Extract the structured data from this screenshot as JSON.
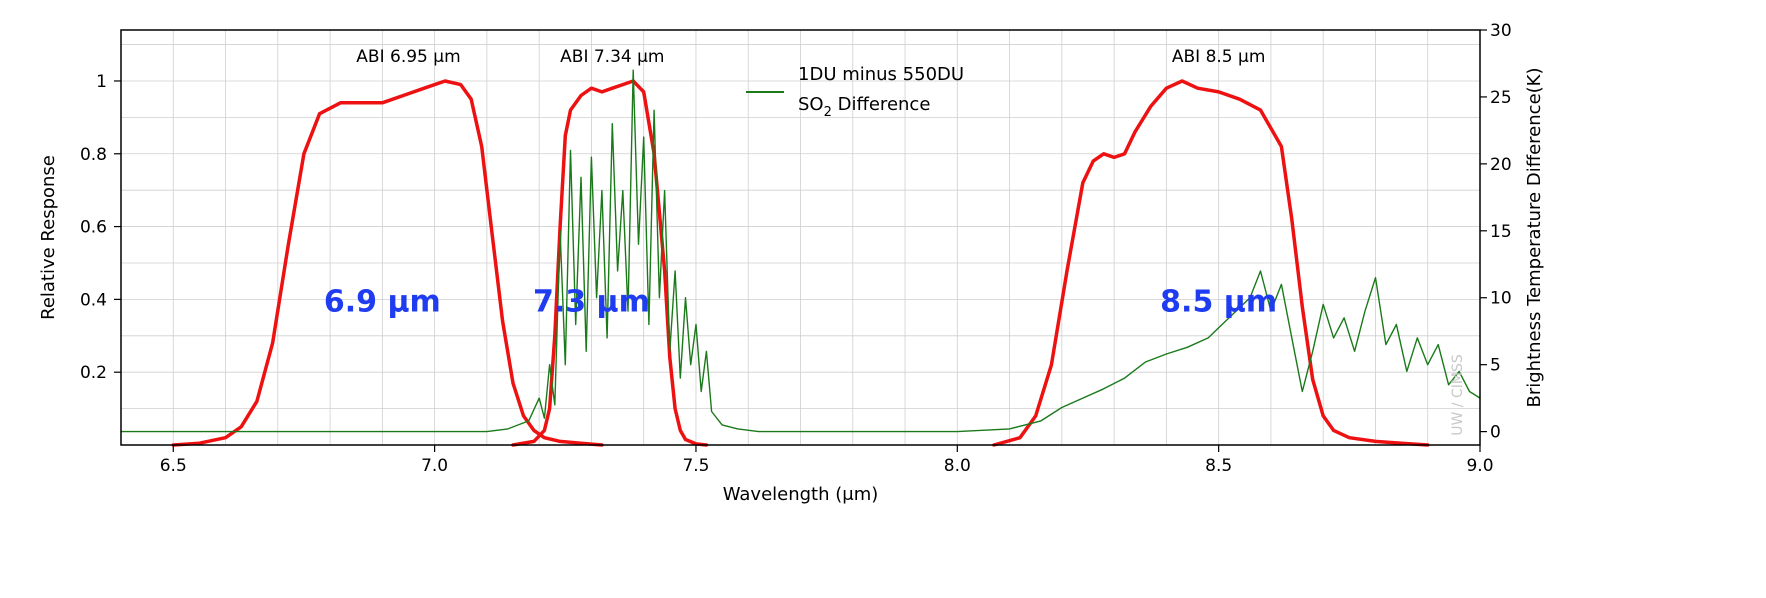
{
  "chart_data": {
    "type": "line",
    "xlabel": "Wavelength (μm)",
    "ylabel": "Relative Response",
    "y2label": "Brightness Temperature Difference(K)",
    "xlim": [
      6.4,
      9.0
    ],
    "ylim": [
      0,
      1.14
    ],
    "y2lim": [
      -1,
      30
    ],
    "grid": true,
    "x_ticks": [
      6.5,
      7.0,
      7.5,
      8.0,
      8.5,
      9.0
    ],
    "x_tick_labels": [
      "6.5",
      "7.0",
      "7.5",
      "8.0",
      "8.5",
      "9.0"
    ],
    "y_ticks": [
      0.2,
      0.4,
      0.6,
      0.8,
      1.0
    ],
    "y_tick_labels": [
      "0.2",
      "0.4",
      "0.6",
      "0.8",
      "1"
    ],
    "y2_ticks": [
      0,
      5,
      10,
      15,
      20,
      25,
      30
    ],
    "y2_tick_labels": [
      "0",
      "5",
      "10",
      "15",
      "20",
      "25",
      "30"
    ],
    "band_titles": [
      {
        "text": "ABI 6.95 μm",
        "x": 6.95
      },
      {
        "text": "ABI 7.34 μm",
        "x": 7.34
      },
      {
        "text": "ABI 8.5 μm",
        "x": 8.5
      }
    ],
    "band_labels": [
      {
        "text": "6.9 μm",
        "x": 6.9,
        "y": 0.4
      },
      {
        "text": "7.3 μm",
        "x": 7.3,
        "y": 0.4
      },
      {
        "text": "8.5 μm",
        "x": 8.5,
        "y": 0.4
      }
    ],
    "legend": {
      "line1": "1DU minus 550DU",
      "line2_main": "SO",
      "line2_sub": "2",
      "line2_rest": " Difference",
      "color": "#1a7a1a",
      "placement": "top-center"
    },
    "watermark": "UW / CIMSS",
    "series": [
      {
        "name": "ABI 6.95 μm",
        "axis": "left",
        "color": "#ee1111",
        "x": [
          6.5,
          6.55,
          6.6,
          6.63,
          6.66,
          6.69,
          6.72,
          6.75,
          6.78,
          6.82,
          6.86,
          6.9,
          6.94,
          6.98,
          7.02,
          7.05,
          7.07,
          7.09,
          7.11,
          7.13,
          7.15,
          7.17,
          7.19,
          7.21,
          7.24,
          7.28,
          7.32
        ],
        "y": [
          0.0,
          0.005,
          0.02,
          0.05,
          0.12,
          0.28,
          0.55,
          0.8,
          0.91,
          0.94,
          0.94,
          0.94,
          0.96,
          0.98,
          1.0,
          0.99,
          0.95,
          0.82,
          0.58,
          0.34,
          0.17,
          0.08,
          0.04,
          0.02,
          0.01,
          0.005,
          0.0
        ]
      },
      {
        "name": "ABI 7.34 μm",
        "axis": "left",
        "color": "#ee1111",
        "x": [
          7.15,
          7.19,
          7.21,
          7.22,
          7.23,
          7.24,
          7.25,
          7.26,
          7.28,
          7.3,
          7.32,
          7.34,
          7.36,
          7.38,
          7.4,
          7.42,
          7.44,
          7.45,
          7.46,
          7.47,
          7.48,
          7.5,
          7.52
        ],
        "y": [
          0.0,
          0.01,
          0.04,
          0.1,
          0.3,
          0.6,
          0.85,
          0.92,
          0.96,
          0.98,
          0.97,
          0.98,
          0.99,
          1.0,
          0.97,
          0.8,
          0.48,
          0.24,
          0.1,
          0.04,
          0.015,
          0.003,
          0.0
        ]
      },
      {
        "name": "ABI 8.5 μm",
        "axis": "left",
        "color": "#ee1111",
        "x": [
          8.07,
          8.12,
          8.15,
          8.18,
          8.21,
          8.24,
          8.26,
          8.28,
          8.3,
          8.32,
          8.34,
          8.37,
          8.4,
          8.43,
          8.46,
          8.5,
          8.54,
          8.58,
          8.62,
          8.64,
          8.66,
          8.68,
          8.7,
          8.72,
          8.75,
          8.8,
          8.85,
          8.9
        ],
        "y": [
          0.0,
          0.02,
          0.08,
          0.22,
          0.48,
          0.72,
          0.78,
          0.8,
          0.79,
          0.8,
          0.86,
          0.93,
          0.98,
          1.0,
          0.98,
          0.97,
          0.95,
          0.92,
          0.82,
          0.62,
          0.38,
          0.18,
          0.08,
          0.04,
          0.02,
          0.01,
          0.005,
          0.0
        ]
      },
      {
        "name": "1DU minus 550DU SO2 Difference",
        "axis": "right",
        "color": "#1a7a1a",
        "x": [
          6.4,
          7.1,
          7.14,
          7.18,
          7.2,
          7.21,
          7.22,
          7.23,
          7.24,
          7.25,
          7.26,
          7.27,
          7.28,
          7.29,
          7.3,
          7.31,
          7.32,
          7.33,
          7.34,
          7.35,
          7.36,
          7.37,
          7.38,
          7.39,
          7.4,
          7.41,
          7.42,
          7.43,
          7.44,
          7.45,
          7.46,
          7.47,
          7.48,
          7.49,
          7.5,
          7.51,
          7.52,
          7.53,
          7.55,
          7.58,
          7.62,
          7.7,
          8.0,
          8.1,
          8.16,
          8.2,
          8.24,
          8.28,
          8.32,
          8.36,
          8.4,
          8.44,
          8.48,
          8.52,
          8.56,
          8.58,
          8.6,
          8.62,
          8.64,
          8.66,
          8.68,
          8.7,
          8.72,
          8.74,
          8.76,
          8.78,
          8.8,
          8.82,
          8.84,
          8.86,
          8.88,
          8.9,
          8.92,
          8.94,
          8.96,
          8.98,
          9.0
        ],
        "y": [
          0,
          0,
          0.2,
          0.8,
          2.5,
          1.0,
          5.0,
          2.0,
          15.0,
          5.0,
          21.0,
          8.0,
          19.0,
          6.0,
          20.5,
          10.0,
          18.0,
          7.0,
          23.0,
          12.0,
          18.0,
          9.0,
          27.0,
          14.0,
          22.0,
          8.0,
          24.0,
          10.0,
          18.0,
          6.0,
          12.0,
          4.0,
          10.0,
          5.0,
          8.0,
          3.0,
          6.0,
          1.5,
          0.5,
          0.2,
          0,
          0,
          0,
          0.2,
          0.8,
          1.8,
          2.5,
          3.2,
          4.0,
          5.2,
          5.8,
          6.3,
          7.0,
          8.5,
          10.0,
          12.0,
          9.0,
          11.0,
          7.0,
          3.0,
          6.0,
          9.5,
          7.0,
          8.5,
          6.0,
          9.0,
          11.5,
          6.5,
          8.0,
          4.5,
          7.0,
          5.0,
          6.5,
          3.5,
          4.5,
          3.0,
          2.5
        ]
      }
    ]
  }
}
